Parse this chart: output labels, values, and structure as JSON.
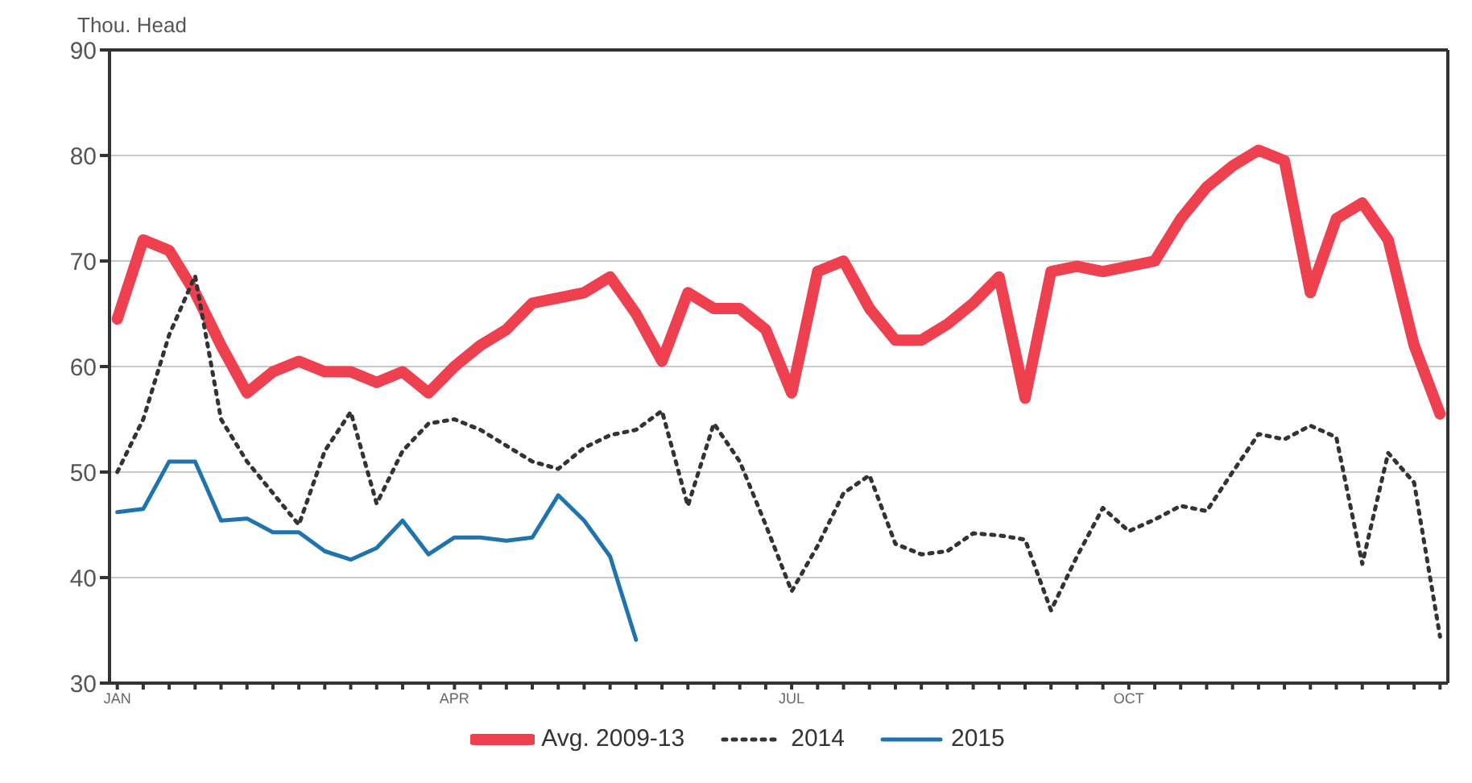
{
  "chart_data": {
    "type": "line",
    "ylabel": "Thou. Head",
    "categories": [
      "JAN",
      null,
      null,
      null,
      null,
      null,
      null,
      null,
      null,
      null,
      null,
      null,
      null,
      "APR",
      null,
      null,
      null,
      null,
      null,
      null,
      null,
      null,
      null,
      null,
      null,
      null,
      "JUL",
      null,
      null,
      null,
      null,
      null,
      null,
      null,
      null,
      null,
      null,
      null,
      null,
      "OCT",
      null,
      null,
      null,
      null,
      null,
      null,
      null,
      null,
      null,
      null,
      null,
      null
    ],
    "ylim": [
      30,
      90
    ],
    "yticks": [
      30,
      40,
      50,
      60,
      70,
      80,
      90
    ],
    "grid": "y",
    "legend": "bottom",
    "marker": "none",
    "series": [
      {
        "name": "Avg. 2009-13",
        "color": "#ef4050",
        "line_style": "solid",
        "values": [
          64.5,
          72,
          71,
          67,
          62,
          57.5,
          59.5,
          60.5,
          59.5,
          59.5,
          58.5,
          59.5,
          57.5,
          60,
          62,
          63.5,
          66,
          66.5,
          67,
          68.5,
          65,
          60.5,
          67,
          65.5,
          65.5,
          63.5,
          57.5,
          69,
          70,
          65.5,
          62.5,
          62.5,
          64,
          66,
          68.5,
          57,
          69,
          69.5,
          69,
          69.5,
          70,
          74,
          77,
          79,
          80.5,
          79.5,
          67,
          74,
          75.5,
          72,
          62,
          55.5
        ]
      },
      {
        "name": "2014",
        "color": "#333333",
        "line_style": "dotted",
        "values": [
          50,
          55,
          63,
          68.6,
          55,
          51,
          48,
          45,
          52,
          55.7,
          47,
          52,
          54.6,
          55,
          54,
          52.5,
          51,
          50.3,
          52.3,
          53.5,
          54,
          55.8,
          46.8,
          54.6,
          51,
          45,
          38.7,
          43,
          48,
          49.7,
          43.2,
          42.2,
          42.5,
          44.2,
          44,
          43.6,
          36.9,
          42,
          46.6,
          44.4,
          45.5,
          46.8,
          46.3,
          50,
          53.6,
          53.1,
          54.4,
          53.3,
          41.3,
          51.8,
          49,
          34.4
        ]
      },
      {
        "name": "2015",
        "color": "#1f74ad",
        "line_style": "solid",
        "values": [
          46.2,
          46.5,
          51,
          51,
          45.4,
          45.6,
          44.3,
          44.3,
          42.5,
          41.7,
          42.8,
          45.4,
          42.2,
          43.8,
          43.8,
          43.5,
          43.8,
          47.8,
          45.4,
          42,
          34.1,
          null,
          null,
          null,
          null,
          null,
          null,
          null,
          null,
          null,
          null,
          null,
          null,
          null,
          null,
          null,
          null,
          null,
          null,
          null,
          null,
          null,
          null,
          null,
          null,
          null,
          null,
          null,
          null,
          null,
          null,
          null
        ]
      }
    ]
  }
}
